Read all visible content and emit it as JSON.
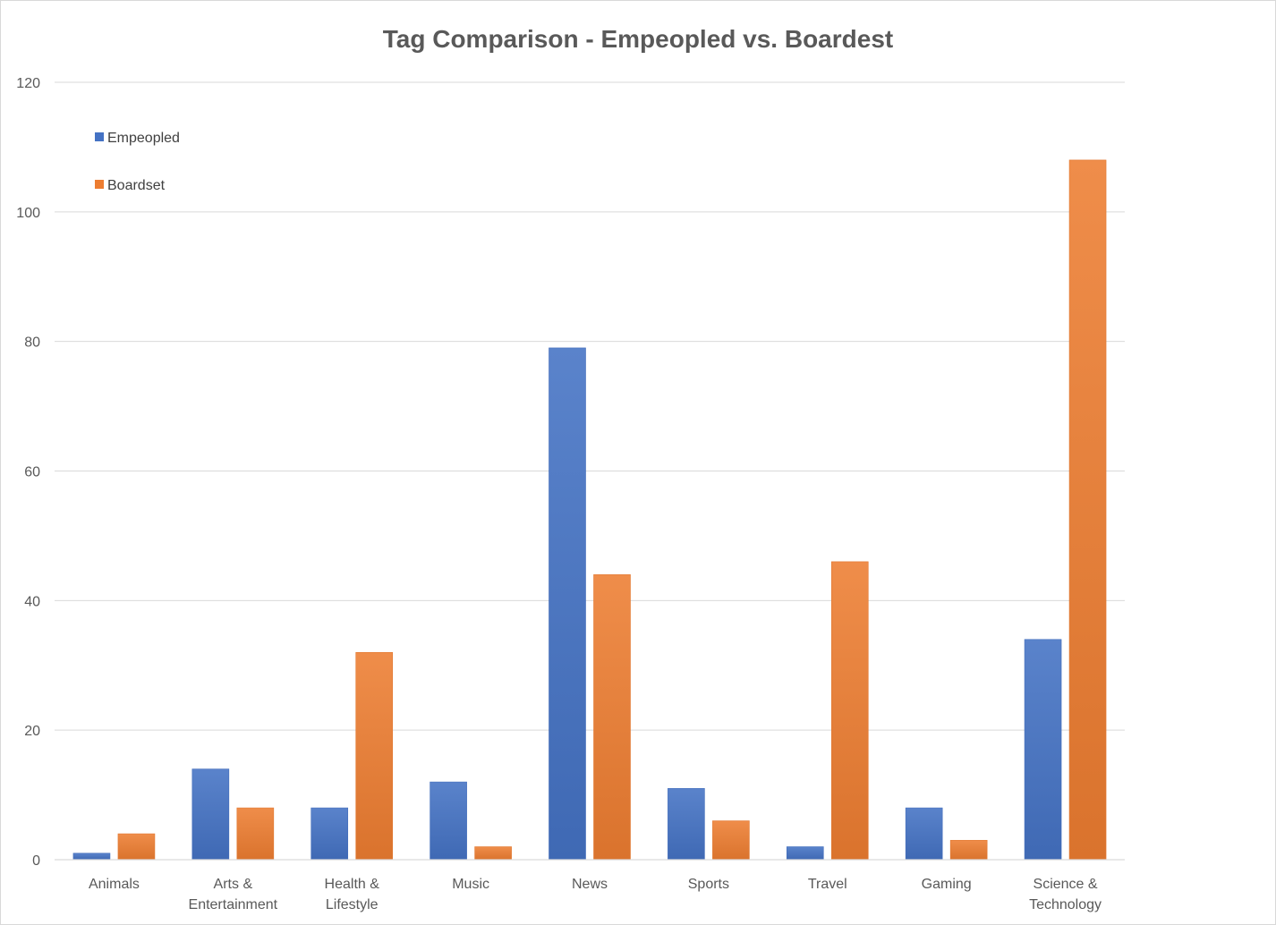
{
  "chart_data": {
    "type": "bar",
    "title": "Tag Comparison - Empeopled vs. Boardest",
    "xlabel": "",
    "ylabel": "",
    "ylim": [
      0,
      120
    ],
    "yticks": [
      "0",
      "20",
      "40",
      "60",
      "80",
      "100",
      "120"
    ],
    "grid": true,
    "legend_position": "top-left",
    "categories": [
      [
        "Animals"
      ],
      [
        "Arts &",
        "Entertainment"
      ],
      [
        "Health &",
        "Lifestyle"
      ],
      [
        "Music"
      ],
      [
        "News"
      ],
      [
        "Sports"
      ],
      [
        "Travel"
      ],
      [
        "Gaming"
      ],
      [
        "Science &",
        "Technology"
      ]
    ],
    "series": [
      {
        "name": "Empeopled",
        "color": "#4472c4",
        "values": [
          1,
          14,
          8,
          12,
          79,
          11,
          2,
          8,
          34
        ]
      },
      {
        "name": "Boardset",
        "color": "#ed7d31",
        "values": [
          4,
          8,
          32,
          2,
          44,
          6,
          46,
          3,
          108
        ]
      }
    ]
  }
}
